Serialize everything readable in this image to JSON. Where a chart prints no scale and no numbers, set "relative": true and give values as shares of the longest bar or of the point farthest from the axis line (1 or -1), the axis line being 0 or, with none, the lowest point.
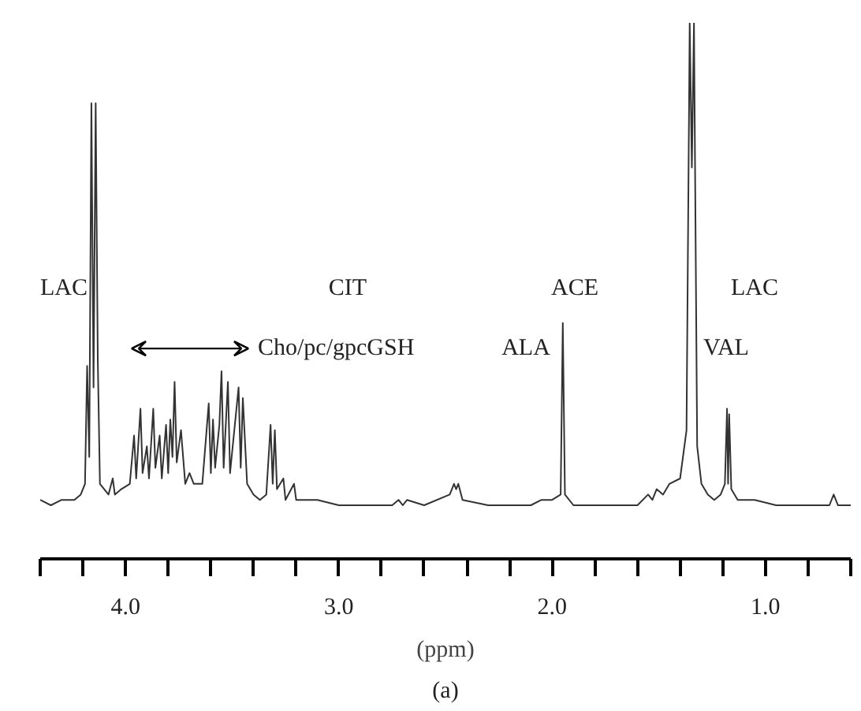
{
  "chart_data": {
    "type": "line",
    "relative": true,
    "xlabel": "(ppm)",
    "xlim": [
      4.4,
      0.6
    ],
    "xticks": [
      {
        "value": 4.4,
        "label": null
      },
      {
        "value": 4.2,
        "label": null
      },
      {
        "value": 4.0,
        "label": "4.0"
      },
      {
        "value": 3.8,
        "label": null
      },
      {
        "value": 3.6,
        "label": null
      },
      {
        "value": 3.4,
        "label": null
      },
      {
        "value": 3.2,
        "label": null
      },
      {
        "value": 3.0,
        "label": "3.0"
      },
      {
        "value": 2.8,
        "label": null
      },
      {
        "value": 2.6,
        "label": null
      },
      {
        "value": 2.4,
        "label": null
      },
      {
        "value": 2.2,
        "label": null
      },
      {
        "value": 2.0,
        "label": "2.0"
      },
      {
        "value": 1.8,
        "label": null
      },
      {
        "value": 1.6,
        "label": null
      },
      {
        "value": 1.4,
        "label": null
      },
      {
        "value": 1.2,
        "label": null
      },
      {
        "value": 1.0,
        "label": "1.0"
      },
      {
        "value": 0.8,
        "label": null
      },
      {
        "value": 0.6,
        "label": null
      }
    ],
    "tick_labels": "x",
    "grid": false,
    "series": [
      {
        "color": "#333333",
        "x": [
          4.4,
          4.35,
          4.3,
          4.24,
          4.21,
          4.19,
          4.18,
          4.17,
          4.16,
          4.15,
          4.14,
          4.13,
          4.12,
          4.1,
          4.08,
          4.06,
          4.05,
          4.02,
          3.98,
          3.96,
          3.95,
          3.93,
          3.92,
          3.9,
          3.89,
          3.87,
          3.86,
          3.84,
          3.83,
          3.81,
          3.8,
          3.79,
          3.78,
          3.77,
          3.76,
          3.74,
          3.72,
          3.7,
          3.68,
          3.66,
          3.64,
          3.62,
          3.61,
          3.6,
          3.59,
          3.58,
          3.56,
          3.55,
          3.54,
          3.52,
          3.51,
          3.49,
          3.47,
          3.46,
          3.45,
          3.43,
          3.4,
          3.37,
          3.34,
          3.32,
          3.31,
          3.3,
          3.29,
          3.26,
          3.25,
          3.21,
          3.2,
          3.1,
          3.0,
          2.75,
          2.72,
          2.7,
          2.68,
          2.6,
          2.48,
          2.46,
          2.45,
          2.44,
          2.42,
          2.3,
          2.1,
          2.05,
          2.0,
          1.96,
          1.95,
          1.94,
          1.9,
          1.6,
          1.55,
          1.53,
          1.51,
          1.48,
          1.45,
          1.4,
          1.37,
          1.355,
          1.345,
          1.335,
          1.32,
          1.3,
          1.27,
          1.24,
          1.21,
          1.19,
          1.18,
          1.175,
          1.17,
          1.16,
          1.13,
          1.05,
          0.95,
          0.8,
          0.7,
          0.68,
          0.66,
          0.6
        ],
        "values": [
          0.11,
          0.1,
          0.11,
          0.11,
          0.12,
          0.14,
          0.36,
          0.19,
          0.85,
          0.32,
          0.85,
          0.37,
          0.14,
          0.13,
          0.12,
          0.15,
          0.12,
          0.13,
          0.14,
          0.23,
          0.15,
          0.28,
          0.16,
          0.21,
          0.15,
          0.28,
          0.17,
          0.23,
          0.15,
          0.25,
          0.16,
          0.26,
          0.19,
          0.33,
          0.18,
          0.24,
          0.14,
          0.16,
          0.14,
          0.14,
          0.14,
          0.24,
          0.29,
          0.16,
          0.26,
          0.17,
          0.25,
          0.35,
          0.17,
          0.33,
          0.16,
          0.24,
          0.32,
          0.17,
          0.3,
          0.14,
          0.12,
          0.11,
          0.12,
          0.25,
          0.14,
          0.24,
          0.13,
          0.15,
          0.11,
          0.14,
          0.11,
          0.11,
          0.1,
          0.1,
          0.11,
          0.1,
          0.11,
          0.1,
          0.12,
          0.14,
          0.13,
          0.14,
          0.11,
          0.1,
          0.1,
          0.11,
          0.11,
          0.12,
          0.44,
          0.12,
          0.1,
          0.1,
          0.12,
          0.11,
          0.13,
          0.12,
          0.14,
          0.15,
          0.24,
          1.0,
          0.73,
          1.0,
          0.21,
          0.14,
          0.12,
          0.11,
          0.12,
          0.14,
          0.28,
          0.14,
          0.27,
          0.13,
          0.11,
          0.11,
          0.1,
          0.1,
          0.1,
          0.12,
          0.1,
          0.1
        ]
      }
    ],
    "annotations": [
      "LAC",
      "CIT",
      "Cho/pc/gpcGSH",
      "ACE",
      "ALA",
      "LAC",
      "VAL",
      "(a)"
    ]
  }
}
